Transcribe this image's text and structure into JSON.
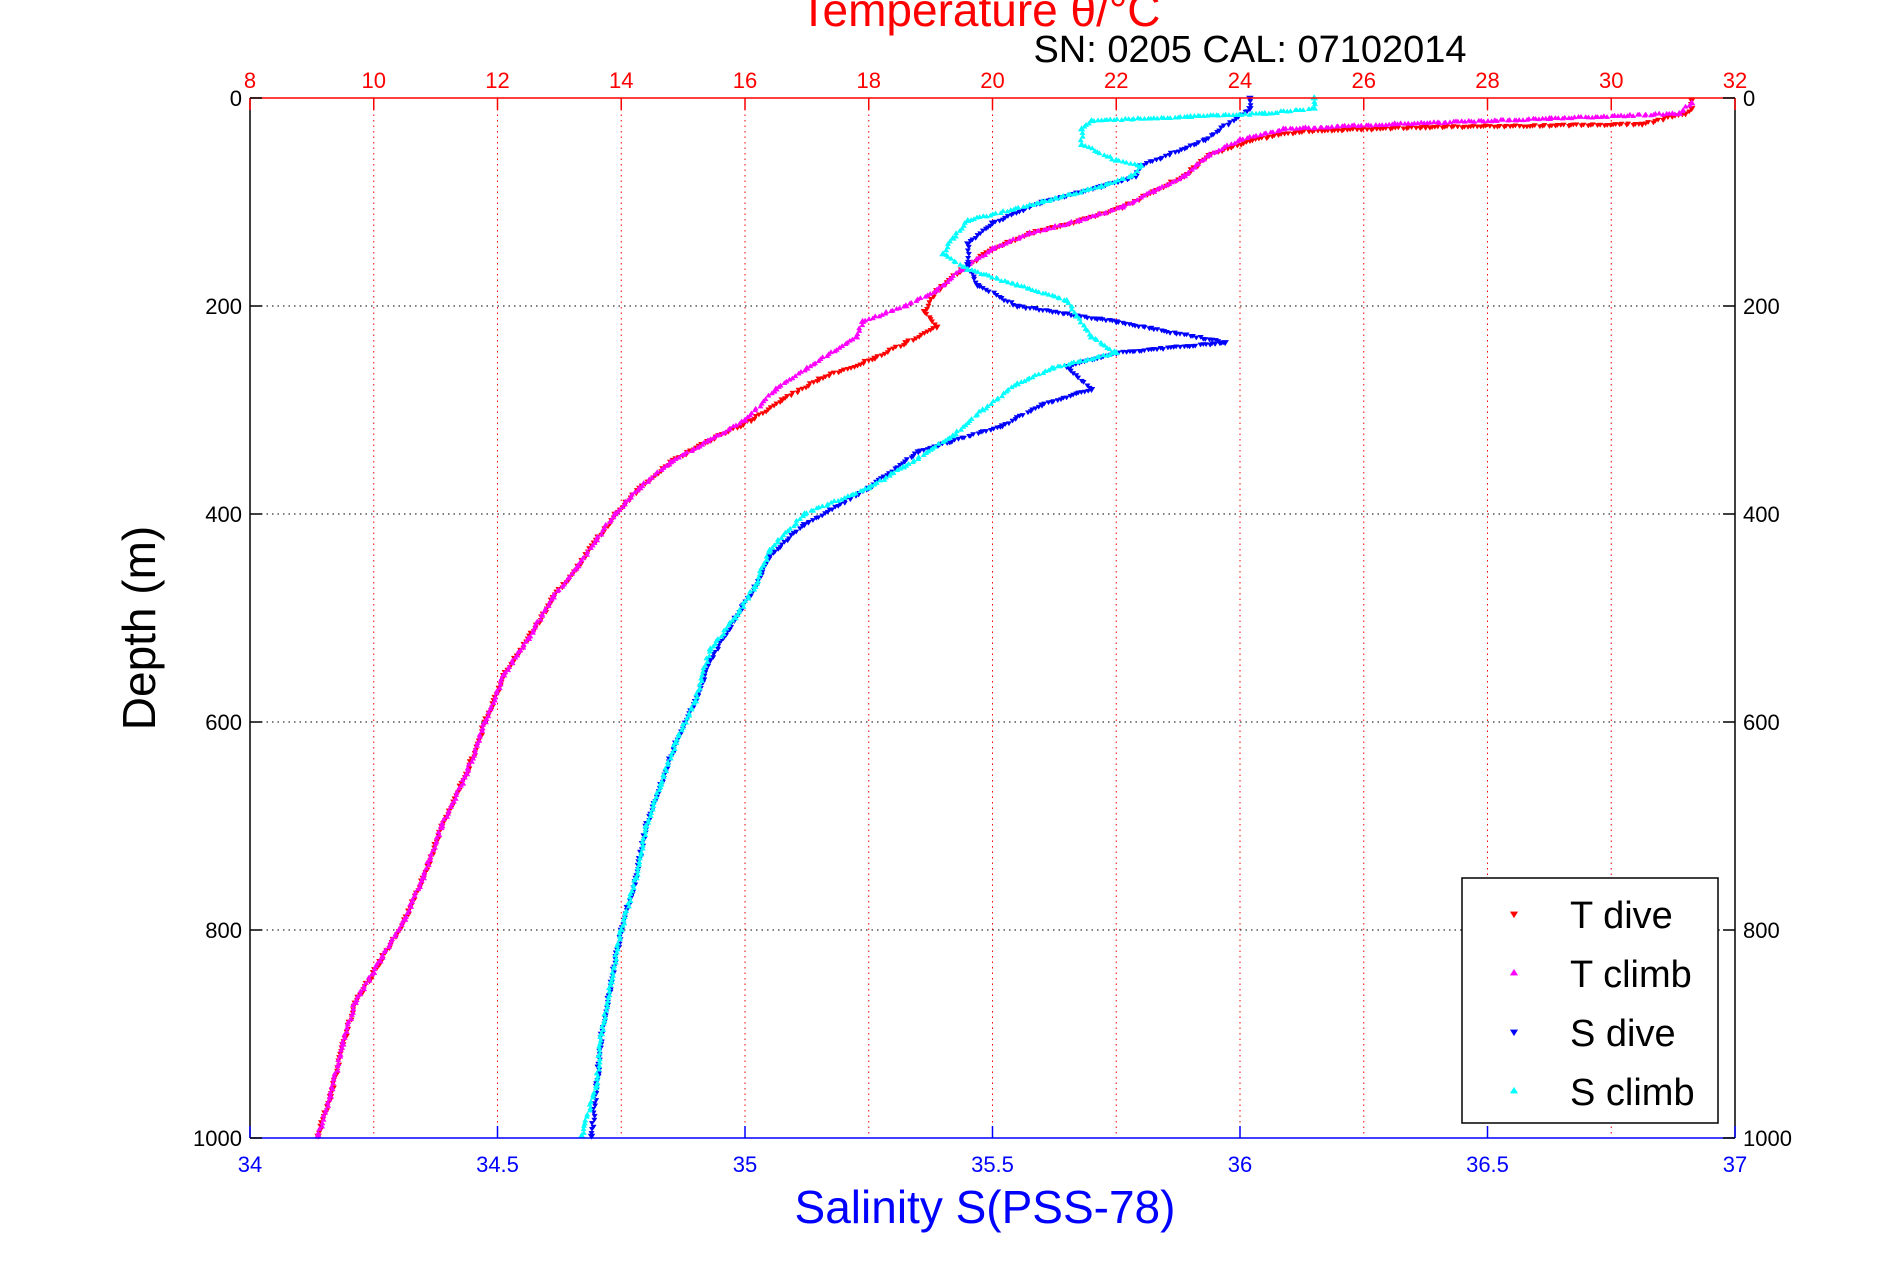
{
  "chart_data": {
    "type": "scatter",
    "title": "Temperature θ/°C",
    "subtitle": "SN: 0205  CAL: 07102014",
    "xlabel_bottom": "Salinity S(PSS-78)",
    "xlabel_top": "Temperature θ/°C",
    "ylabel": "Depth (m)",
    "ylim": [
      0,
      1000
    ],
    "y_reversed": true,
    "yticks": [
      0,
      200,
      400,
      600,
      800,
      1000
    ],
    "xlim_bottom": [
      34,
      37
    ],
    "xticks_bottom": [
      34,
      34.5,
      35,
      35.5,
      36,
      36.5,
      37
    ],
    "xlim_top": [
      8,
      32
    ],
    "xticks_top": [
      8,
      10,
      12,
      14,
      16,
      18,
      20,
      22,
      24,
      26,
      28,
      30,
      32
    ],
    "grid": "dotted",
    "legend_position": "bottom-right",
    "colors": {
      "temperature_axis": "#ff0000",
      "salinity_axis": "#0000ff",
      "T_dive": "#ff0000",
      "T_climb": "#ff00ff",
      "S_dive": "#0000ff",
      "S_climb": "#00ffff"
    },
    "series": [
      {
        "name": "T dive",
        "axis": "top",
        "marker": "triangle-down",
        "points": [
          [
            31.3,
            2
          ],
          [
            31.3,
            10
          ],
          [
            31.2,
            15
          ],
          [
            30.5,
            25
          ],
          [
            27,
            28
          ],
          [
            25,
            32
          ],
          [
            24.2,
            40
          ],
          [
            23.5,
            55
          ],
          [
            23.1,
            75
          ],
          [
            22.6,
            90
          ],
          [
            22.1,
            105
          ],
          [
            21.4,
            118
          ],
          [
            20.6,
            130
          ],
          [
            20,
            145
          ],
          [
            19.5,
            165
          ],
          [
            19.1,
            185
          ],
          [
            18.9,
            205
          ],
          [
            19.1,
            220
          ],
          [
            18.6,
            235
          ],
          [
            18.1,
            250
          ],
          [
            17.2,
            270
          ],
          [
            16.6,
            290
          ],
          [
            16.1,
            310
          ],
          [
            15.4,
            330
          ],
          [
            14.8,
            350
          ],
          [
            14.3,
            375
          ],
          [
            13.9,
            400
          ],
          [
            13.6,
            425
          ],
          [
            13.3,
            450
          ],
          [
            12.9,
            480
          ],
          [
            12.5,
            520
          ],
          [
            12.1,
            555
          ],
          [
            11.8,
            600
          ],
          [
            11.5,
            650
          ],
          [
            11.1,
            700
          ],
          [
            10.8,
            750
          ],
          [
            10.5,
            790
          ],
          [
            10.1,
            830
          ],
          [
            9.7,
            870
          ],
          [
            9.5,
            910
          ],
          [
            9.3,
            960
          ],
          [
            9.1,
            998
          ]
        ]
      },
      {
        "name": "T climb",
        "axis": "top",
        "marker": "triangle-up",
        "points": [
          [
            31.3,
            5
          ],
          [
            31.1,
            15
          ],
          [
            29,
            20
          ],
          [
            26.5,
            25
          ],
          [
            24.7,
            30
          ],
          [
            24,
            40
          ],
          [
            23.5,
            55
          ],
          [
            23.1,
            75
          ],
          [
            22.6,
            90
          ],
          [
            22.1,
            105
          ],
          [
            21.4,
            118
          ],
          [
            20.6,
            130
          ],
          [
            20,
            145
          ],
          [
            19.5,
            165
          ],
          [
            19.1,
            185
          ],
          [
            18.6,
            200
          ],
          [
            17.9,
            215
          ],
          [
            17.8,
            230
          ],
          [
            17,
            260
          ],
          [
            16.5,
            280
          ],
          [
            16,
            310
          ],
          [
            15.4,
            330
          ],
          [
            14.8,
            350
          ],
          [
            14.3,
            375
          ],
          [
            13.9,
            400
          ],
          [
            13.6,
            425
          ],
          [
            13.3,
            450
          ],
          [
            12.9,
            480
          ],
          [
            12.5,
            520
          ],
          [
            12.1,
            555
          ],
          [
            11.8,
            600
          ],
          [
            11.5,
            650
          ],
          [
            11.1,
            700
          ],
          [
            10.8,
            750
          ],
          [
            10.5,
            790
          ],
          [
            10.1,
            830
          ],
          [
            9.7,
            870
          ],
          [
            9.5,
            910
          ],
          [
            9.3,
            960
          ],
          [
            9.1,
            998
          ]
        ]
      },
      {
        "name": "S dive",
        "axis": "bottom",
        "marker": "triangle-down",
        "points": [
          [
            36.02,
            0
          ],
          [
            36.02,
            10
          ],
          [
            35.93,
            40
          ],
          [
            35.8,
            65
          ],
          [
            35.79,
            75
          ],
          [
            35.72,
            85
          ],
          [
            35.6,
            100
          ],
          [
            35.5,
            120
          ],
          [
            35.45,
            140
          ],
          [
            35.45,
            160
          ],
          [
            35.47,
            180
          ],
          [
            35.55,
            200
          ],
          [
            35.75,
            215
          ],
          [
            35.97,
            235
          ],
          [
            35.75,
            245
          ],
          [
            35.65,
            258
          ],
          [
            35.7,
            280
          ],
          [
            35.6,
            295
          ],
          [
            35.52,
            315
          ],
          [
            35.35,
            340
          ],
          [
            35.25,
            375
          ],
          [
            35.12,
            410
          ],
          [
            35.05,
            440
          ],
          [
            35.02,
            470
          ],
          [
            34.98,
            500
          ],
          [
            34.93,
            540
          ],
          [
            34.9,
            580
          ],
          [
            34.86,
            620
          ],
          [
            34.83,
            660
          ],
          [
            34.8,
            700
          ],
          [
            34.78,
            750
          ],
          [
            34.75,
            800
          ],
          [
            34.73,
            850
          ],
          [
            34.71,
            900
          ],
          [
            34.7,
            950
          ],
          [
            34.69,
            998
          ]
        ]
      },
      {
        "name": "S climb",
        "axis": "bottom",
        "marker": "triangle-up",
        "points": [
          [
            36.15,
            0
          ],
          [
            36.15,
            10
          ],
          [
            36.05,
            15
          ],
          [
            35.9,
            18
          ],
          [
            35.7,
            22
          ],
          [
            35.68,
            30
          ],
          [
            35.68,
            45
          ],
          [
            35.75,
            60
          ],
          [
            35.8,
            65
          ],
          [
            35.78,
            75
          ],
          [
            35.72,
            85
          ],
          [
            35.6,
            100
          ],
          [
            35.45,
            118
          ],
          [
            35.42,
            135
          ],
          [
            35.4,
            150
          ],
          [
            35.45,
            165
          ],
          [
            35.55,
            180
          ],
          [
            35.65,
            195
          ],
          [
            35.67,
            210
          ],
          [
            35.7,
            230
          ],
          [
            35.75,
            245
          ],
          [
            35.62,
            260
          ],
          [
            35.55,
            275
          ],
          [
            35.48,
            300
          ],
          [
            35.42,
            325
          ],
          [
            35.32,
            355
          ],
          [
            35.25,
            375
          ],
          [
            35.12,
            400
          ],
          [
            35.05,
            435
          ],
          [
            35.02,
            470
          ],
          [
            34.98,
            500
          ],
          [
            34.93,
            530
          ],
          [
            34.9,
            580
          ],
          [
            34.86,
            620
          ],
          [
            34.83,
            660
          ],
          [
            34.8,
            700
          ],
          [
            34.78,
            750
          ],
          [
            34.75,
            800
          ],
          [
            34.73,
            850
          ],
          [
            34.71,
            900
          ],
          [
            34.7,
            950
          ],
          [
            34.67,
            998
          ]
        ]
      }
    ],
    "legend": [
      {
        "label": "T dive",
        "color": "#ff0000",
        "marker": "triangle-down"
      },
      {
        "label": "T climb",
        "color": "#ff00ff",
        "marker": "triangle-up"
      },
      {
        "label": "S dive",
        "color": "#0000ff",
        "marker": "triangle-down"
      },
      {
        "label": "S climb",
        "color": "#00ffff",
        "marker": "triangle-up"
      }
    ]
  }
}
